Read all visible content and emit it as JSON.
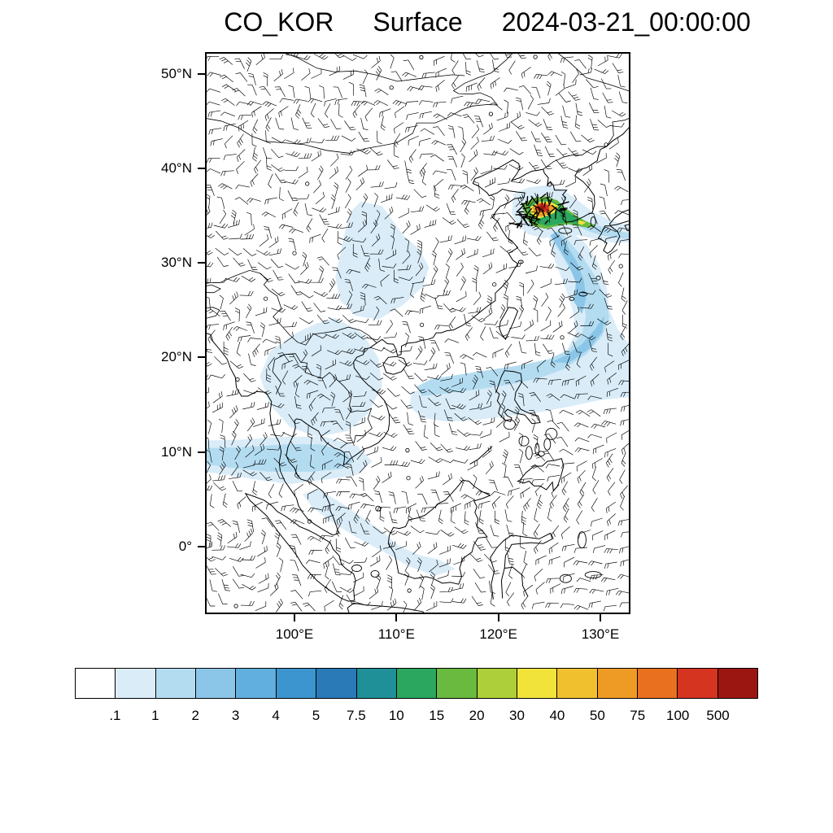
{
  "title": {
    "variable": "CO_KOR",
    "level": "Surface",
    "datetime": "2024-03-21_00:00:00"
  },
  "colorbar": {
    "labels": [
      ".1",
      "1",
      "2",
      "3",
      "4",
      "5",
      "7.5",
      "10",
      "15",
      "20",
      "30",
      "40",
      "50",
      "75",
      "100",
      "500"
    ],
    "colors": [
      "#ffffff",
      "#d9ecf8",
      "#b3dcf1",
      "#8bc6e8",
      "#61afde",
      "#3d95cf",
      "#2a7ab8",
      "#1f9098",
      "#2ba75f",
      "#69ba3f",
      "#adcf39",
      "#f2e33b",
      "#f0c02f",
      "#ee9b25",
      "#e9701e",
      "#d53420",
      "#9b1511"
    ]
  },
  "chart_data": {
    "type": "heatmap",
    "title": "CO_KOR Surface 2024-03-21_00:00:00",
    "variable": "CO_KOR",
    "level_type": "Surface",
    "valid_time": "2024-03-21_00:00:00",
    "projection": "cylindrical equidistant map of East and Southeast Asia",
    "lon_range_deg_e": [
      91.2,
      133.0
    ],
    "lat_range_deg_n": [
      -7.2,
      52.3
    ],
    "x_ticks": {
      "values": [
        100,
        110,
        120,
        130
      ],
      "labels": [
        "100°E",
        "110°E",
        "120°E",
        "130°E"
      ]
    },
    "y_ticks": {
      "values": [
        50,
        40,
        30,
        20,
        10,
        0
      ],
      "labels": [
        "50°N",
        "40°N",
        "30°N",
        "20°N",
        "10°N",
        "0°"
      ]
    },
    "contour_levels": [
      0.1,
      1,
      2,
      3,
      4,
      5,
      7.5,
      10,
      15,
      20,
      30,
      40,
      50,
      75,
      100,
      500
    ],
    "overlay": "wind barbs over entire domain; coastlines and national borders",
    "maximum_region": "Yellow Sea / Korean Peninsula near 124E 35.5N (red/orange core above 100)",
    "plume_description": "Plume of 1-20 values extends east past southern Korea and curves southwest across the Philippine Sea to ~112E near 15N; light 0.1-1 values over central China, Indochina, an 8-10N band, and near the equator"
  }
}
